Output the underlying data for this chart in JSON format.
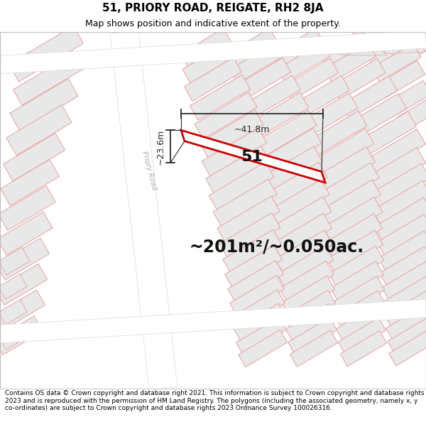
{
  "title": "51, PRIORY ROAD, REIGATE, RH2 8JA",
  "subtitle": "Map shows position and indicative extent of the property.",
  "area_text": "~201m²/~0.050ac.",
  "width_label": "~41.8m",
  "height_label": "~23.6m",
  "property_number": "51",
  "footer": "Contains OS data © Crown copyright and database right 2021. This information is subject to Crown copyright and database rights 2023 and is reproduced with the permission of HM Land Registry. The polygons (including the associated geometry, namely x, y co-ordinates) are subject to Crown copyright and database rights 2023 Ordnance Survey 100026316.",
  "map_bg": "#f8f8f8",
  "building_fill": "#e8e8e8",
  "building_edge": "#e8a0a0",
  "road_fill": "#ffffff",
  "road_edge": "#e0e0e0",
  "highlight_edge": "#cc0000",
  "dim_color": "#2a2a2a",
  "road_label_color": "#aaaaaa",
  "title_fontsize": 11,
  "subtitle_fontsize": 9,
  "footer_fontsize": 6.5
}
